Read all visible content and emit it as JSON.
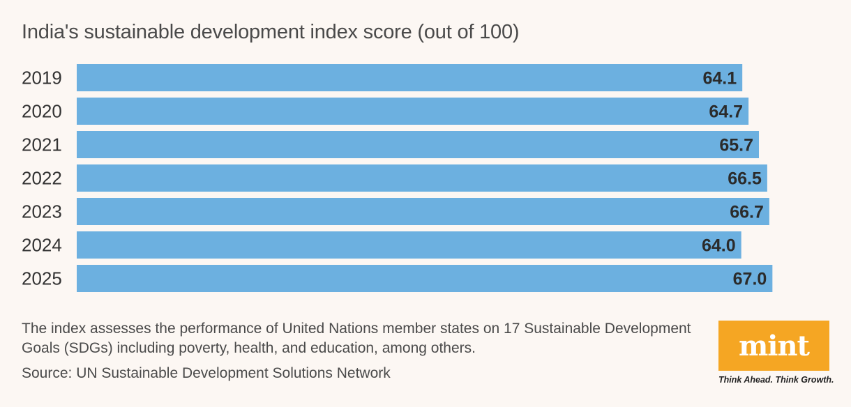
{
  "chart_data": {
    "type": "bar",
    "orientation": "horizontal",
    "title": "India's sustainable development index score (out of 100)",
    "categories": [
      "2019",
      "2020",
      "2021",
      "2022",
      "2023",
      "2024",
      "2025"
    ],
    "values": [
      64.1,
      64.7,
      65.7,
      66.5,
      66.7,
      64.0,
      67.0
    ],
    "value_labels": [
      "64.1",
      "64.7",
      "65.7",
      "66.5",
      "66.7",
      "64.0",
      "67.0"
    ],
    "xlim": [
      0,
      70
    ],
    "bar_color": "#6cb0e0",
    "grid": false,
    "legend": "none"
  },
  "note": "The index assesses the performance of United Nations member states on 17 Sustainable Development Goals (SDGs) including poverty, health, and education, among others.",
  "source": "Source: UN Sustainable Development Solutions Network",
  "brand": {
    "logo_text": "mint",
    "tagline": "Think Ahead. Think Growth.",
    "logo_color": "#f5a623"
  }
}
